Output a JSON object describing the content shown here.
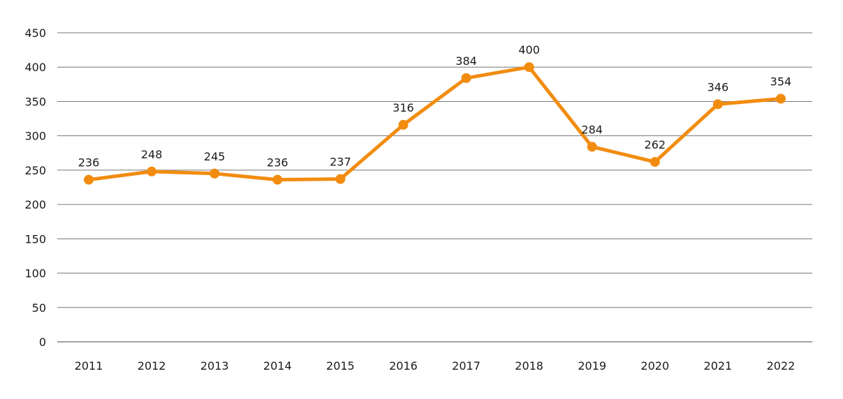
{
  "chart_data": {
    "type": "line",
    "categories": [
      "2011",
      "2012",
      "2013",
      "2014",
      "2015",
      "2016",
      "2017",
      "2018",
      "2019",
      "2020",
      "2021",
      "2022"
    ],
    "values": [
      236,
      248,
      245,
      236,
      237,
      316,
      384,
      400,
      284,
      262,
      346,
      354
    ],
    "ylim": [
      0,
      450
    ],
    "yticks": [
      0,
      50,
      100,
      150,
      200,
      250,
      300,
      350,
      400,
      450
    ],
    "title": "",
    "xlabel": "",
    "ylabel": "",
    "grid": true,
    "color": "#f28c0f"
  }
}
